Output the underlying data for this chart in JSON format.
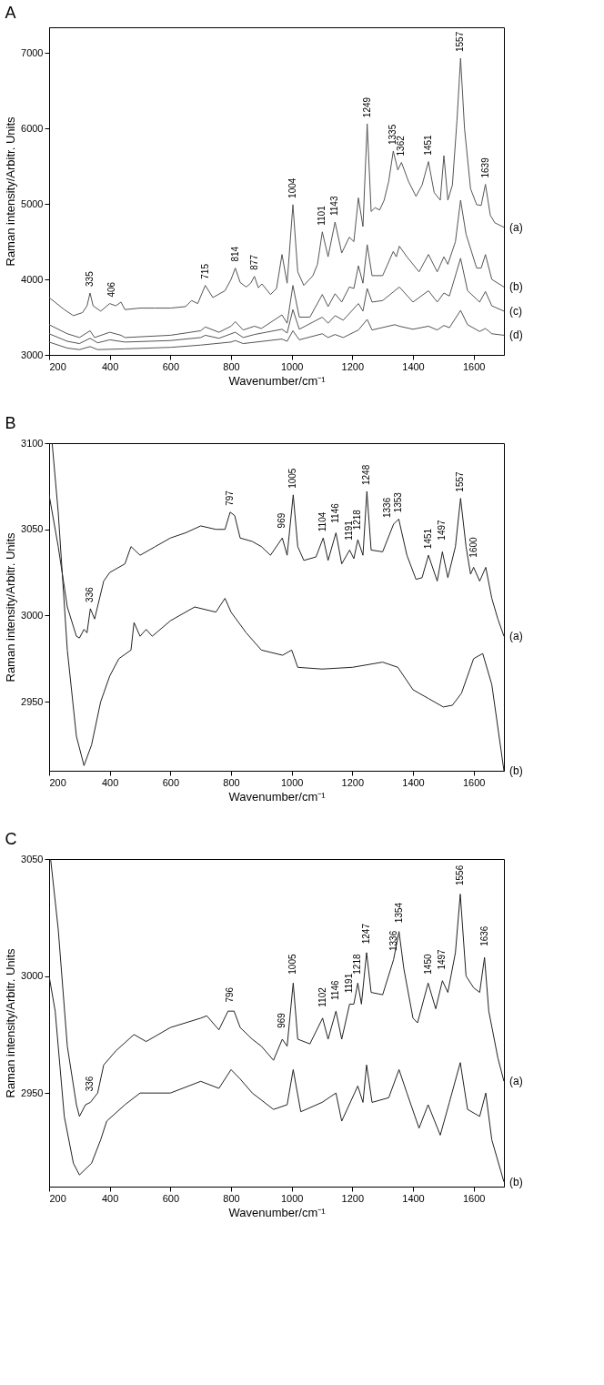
{
  "chart_data": [
    {
      "type": "line",
      "title": "A",
      "xlabel": "Wavenumber/cm⁻¹",
      "ylabel": "Raman intensity/Arbitr. Units",
      "xlim": [
        200,
        1700
      ],
      "xticks": [
        200,
        400,
        600,
        800,
        1000,
        1200,
        1400,
        1600
      ],
      "ylim": [
        3000,
        7340
      ],
      "yticks": [
        3000,
        4000,
        5000,
        6000,
        7000
      ],
      "line_style": "solid",
      "series": [
        {
          "name": "(a)",
          "color": "#555555",
          "x": [
            200,
            250,
            280,
            310,
            325,
            335,
            345,
            370,
            400,
            420,
            437,
            450,
            500,
            550,
            600,
            650,
            670,
            690,
            715,
            740,
            780,
            800,
            814,
            830,
            850,
            865,
            877,
            890,
            902,
            930,
            950,
            968,
            985,
            1004,
            1020,
            1040,
            1070,
            1085,
            1101,
            1120,
            1143,
            1165,
            1190,
            1205,
            1220,
            1235,
            1249,
            1262,
            1275,
            1290,
            1305,
            1320,
            1335,
            1350,
            1362,
            1385,
            1410,
            1430,
            1451,
            1470,
            1490,
            1502,
            1515,
            1530,
            1545,
            1557,
            1570,
            1590,
            1610,
            1625,
            1639,
            1655,
            1670,
            1685,
            1700
          ],
          "values": [
            3760,
            3600,
            3520,
            3560,
            3650,
            3820,
            3650,
            3580,
            3680,
            3650,
            3700,
            3600,
            3620,
            3620,
            3620,
            3640,
            3720,
            3680,
            3920,
            3760,
            3850,
            4000,
            4150,
            3960,
            3900,
            3950,
            4040,
            3890,
            3940,
            3800,
            3880,
            4330,
            3950,
            4990,
            4100,
            3920,
            4050,
            4200,
            4630,
            4300,
            4760,
            4350,
            4560,
            4500,
            5080,
            4700,
            6060,
            4900,
            4950,
            4920,
            5050,
            5300,
            5700,
            5450,
            5550,
            5300,
            5100,
            5250,
            5560,
            5150,
            5050,
            5640,
            5050,
            5250,
            6100,
            6930,
            6000,
            5200,
            4990,
            4980,
            5260,
            4850,
            4750,
            4720,
            4690
          ]
        },
        {
          "name": "(b)",
          "color": "#555555",
          "x": [
            200,
            260,
            300,
            335,
            350,
            400,
            437,
            450,
            600,
            700,
            715,
            760,
            800,
            814,
            840,
            877,
            900,
            968,
            985,
            1004,
            1025,
            1060,
            1101,
            1120,
            1143,
            1165,
            1190,
            1205,
            1220,
            1235,
            1249,
            1265,
            1300,
            1335,
            1345,
            1355,
            1380,
            1420,
            1451,
            1480,
            1502,
            1515,
            1540,
            1557,
            1575,
            1610,
            1625,
            1639,
            1660,
            1700
          ],
          "values": [
            3400,
            3280,
            3230,
            3320,
            3230,
            3300,
            3260,
            3230,
            3260,
            3320,
            3370,
            3300,
            3380,
            3440,
            3330,
            3380,
            3350,
            3530,
            3420,
            3920,
            3500,
            3500,
            3800,
            3640,
            3810,
            3700,
            3900,
            3880,
            4180,
            3950,
            4460,
            4050,
            4050,
            4370,
            4300,
            4440,
            4300,
            4100,
            4330,
            4100,
            4300,
            4200,
            4500,
            5050,
            4600,
            4150,
            4150,
            4330,
            4000,
            3900
          ]
        },
        {
          "name": "(c)",
          "color": "#555555",
          "x": [
            200,
            260,
            300,
            335,
            360,
            400,
            450,
            600,
            700,
            715,
            760,
            814,
            840,
            877,
            968,
            985,
            1004,
            1025,
            1101,
            1120,
            1143,
            1170,
            1220,
            1235,
            1249,
            1265,
            1300,
            1340,
            1355,
            1400,
            1451,
            1480,
            1502,
            1520,
            1557,
            1580,
            1620,
            1639,
            1660,
            1700
          ],
          "values": [
            3280,
            3180,
            3150,
            3220,
            3160,
            3200,
            3170,
            3190,
            3230,
            3260,
            3220,
            3300,
            3230,
            3270,
            3340,
            3290,
            3600,
            3340,
            3500,
            3420,
            3520,
            3460,
            3680,
            3580,
            3880,
            3700,
            3720,
            3850,
            3900,
            3700,
            3850,
            3700,
            3820,
            3780,
            4280,
            3850,
            3700,
            3840,
            3650,
            3580
          ]
        },
        {
          "name": "(d)",
          "color": "#555555",
          "x": [
            200,
            260,
            300,
            335,
            360,
            450,
            600,
            700,
            800,
            814,
            840,
            968,
            985,
            1004,
            1025,
            1101,
            1120,
            1143,
            1170,
            1220,
            1249,
            1265,
            1340,
            1355,
            1400,
            1451,
            1480,
            1502,
            1520,
            1557,
            1580,
            1620,
            1639,
            1660,
            1700
          ],
          "values": [
            3170,
            3090,
            3070,
            3110,
            3070,
            3080,
            3100,
            3130,
            3170,
            3190,
            3150,
            3210,
            3180,
            3320,
            3200,
            3280,
            3230,
            3270,
            3230,
            3330,
            3470,
            3330,
            3400,
            3380,
            3340,
            3380,
            3330,
            3390,
            3360,
            3590,
            3400,
            3310,
            3350,
            3280,
            3260
          ]
        }
      ],
      "annotations": [
        {
          "text": "335",
          "x": 335,
          "y": 3820
        },
        {
          "text": "406",
          "x": 406,
          "y": 3680
        },
        {
          "text": "715",
          "x": 715,
          "y": 3920
        },
        {
          "text": "814",
          "x": 814,
          "y": 4150
        },
        {
          "text": "877",
          "x": 877,
          "y": 4040
        },
        {
          "text": "1004",
          "x": 1004,
          "y": 4990
        },
        {
          "text": "1101",
          "x": 1101,
          "y": 4630
        },
        {
          "text": "1143",
          "x": 1143,
          "y": 4760
        },
        {
          "text": "1249",
          "x": 1249,
          "y": 6060
        },
        {
          "text": "1335",
          "x": 1335,
          "y": 5700
        },
        {
          "text": "1362",
          "x": 1362,
          "y": 5550
        },
        {
          "text": "1451",
          "x": 1451,
          "y": 5560
        },
        {
          "text": "1557",
          "x": 1557,
          "y": 6930
        },
        {
          "text": "1639",
          "x": 1639,
          "y": 5260
        }
      ]
    },
    {
      "type": "line",
      "title": "B",
      "xlabel": "Wavenumber/cm⁻¹",
      "ylabel": "Raman intensity/Arbitr. Units",
      "xlim": [
        200,
        1700
      ],
      "xticks": [
        200,
        400,
        600,
        800,
        1000,
        1200,
        1400,
        1600
      ],
      "ylim": [
        2910,
        3100
      ],
      "yticks": [
        2950,
        3000,
        3050,
        3100
      ],
      "line_style": "solid",
      "series": [
        {
          "name": "(a)",
          "color": "#222222",
          "x": [
            200,
            230,
            260,
            290,
            300,
            315,
            325,
            336,
            350,
            380,
            400,
            450,
            470,
            500,
            550,
            600,
            650,
            700,
            750,
            780,
            797,
            812,
            830,
            870,
            900,
            930,
            969,
            985,
            1005,
            1020,
            1040,
            1080,
            1104,
            1120,
            1146,
            1165,
            1191,
            1205,
            1218,
            1235,
            1248,
            1262,
            1300,
            1336,
            1353,
            1380,
            1410,
            1430,
            1451,
            1480,
            1497,
            1515,
            1540,
            1557,
            1575,
            1590,
            1600,
            1620,
            1640,
            1660,
            1680,
            1700
          ],
          "values": [
            3070,
            3040,
            3005,
            2988,
            2987,
            2992,
            2990,
            3004,
            2998,
            3020,
            3025,
            3030,
            3040,
            3035,
            3040,
            3045,
            3048,
            3052,
            3050,
            3050,
            3060,
            3058,
            3045,
            3043,
            3040,
            3035,
            3045,
            3035,
            3070,
            3040,
            3032,
            3034,
            3045,
            3032,
            3048,
            3030,
            3038,
            3033,
            3044,
            3035,
            3072,
            3038,
            3037,
            3053,
            3056,
            3035,
            3021,
            3022,
            3035,
            3020,
            3037,
            3022,
            3040,
            3068,
            3040,
            3024,
            3028,
            3020,
            3028,
            3010,
            2998,
            2988
          ]
        },
        {
          "name": "(b)",
          "color": "#222222",
          "x": [
            210,
            230,
            260,
            290,
            315,
            340,
            370,
            400,
            430,
            470,
            480,
            500,
            520,
            540,
            600,
            680,
            750,
            780,
            800,
            850,
            900,
            970,
            1000,
            1020,
            1100,
            1200,
            1300,
            1350,
            1400,
            1450,
            1500,
            1530,
            1560,
            1600,
            1630,
            1660,
            1700
          ],
          "values": [
            3100,
            3060,
            2980,
            2930,
            2913,
            2925,
            2950,
            2965,
            2975,
            2980,
            2996,
            2988,
            2992,
            2988,
            2997,
            3005,
            3002,
            3010,
            3002,
            2990,
            2980,
            2977,
            2980,
            2970,
            2969,
            2970,
            2973,
            2970,
            2957,
            2952,
            2947,
            2948,
            2955,
            2975,
            2978,
            2960,
            2910
          ]
        }
      ],
      "annotations": [
        {
          "text": "336",
          "x": 336,
          "y": 3004
        },
        {
          "text": "797",
          "x": 797,
          "y": 3060
        },
        {
          "text": "969",
          "x": 969,
          "y": 3047
        },
        {
          "text": "1005",
          "x": 1005,
          "y": 3070
        },
        {
          "text": "1104",
          "x": 1104,
          "y": 3045
        },
        {
          "text": "1146",
          "x": 1146,
          "y": 3050
        },
        {
          "text": "1191",
          "x": 1191,
          "y": 3040
        },
        {
          "text": "1218",
          "x": 1218,
          "y": 3046
        },
        {
          "text": "1248",
          "x": 1248,
          "y": 3072
        },
        {
          "text": "1336",
          "x": 1336,
          "y": 3053
        },
        {
          "text": "1353",
          "x": 1353,
          "y": 3056
        },
        {
          "text": "1451",
          "x": 1451,
          "y": 3035
        },
        {
          "text": "1497",
          "x": 1497,
          "y": 3040
        },
        {
          "text": "1557",
          "x": 1557,
          "y": 3068
        },
        {
          "text": "1600",
          "x": 1600,
          "y": 3030
        }
      ]
    },
    {
      "type": "line",
      "title": "C",
      "xlabel": "Wavenumber/cm⁻¹",
      "ylabel": "Raman intensity/Arbitr. Units",
      "xlim": [
        200,
        1700
      ],
      "xticks": [
        200,
        400,
        600,
        800,
        1000,
        1200,
        1400,
        1600
      ],
      "ylim": [
        2910,
        3050
      ],
      "yticks": [
        2950,
        3000,
        3050
      ],
      "line_style": "solid",
      "series": [
        {
          "name": "(a)",
          "color": "#222222",
          "x": [
            205,
            230,
            260,
            290,
            300,
            320,
            336,
            360,
            380,
            420,
            480,
            520,
            560,
            600,
            650,
            700,
            720,
            760,
            790,
            810,
            830,
            870,
            900,
            940,
            969,
            985,
            1005,
            1020,
            1060,
            1102,
            1120,
            1146,
            1165,
            1191,
            1205,
            1218,
            1230,
            1247,
            1262,
            1300,
            1336,
            1354,
            1370,
            1400,
            1415,
            1450,
            1475,
            1497,
            1515,
            1540,
            1556,
            1575,
            1600,
            1620,
            1636,
            1650,
            1680,
            1700
          ],
          "values": [
            3050,
            3020,
            2970,
            2945,
            2940,
            2945,
            2946,
            2950,
            2962,
            2968,
            2975,
            2972,
            2975,
            2978,
            2980,
            2982,
            2983,
            2977,
            2985,
            2985,
            2978,
            2973,
            2970,
            2964,
            2973,
            2970,
            2997,
            2973,
            2971,
            2982,
            2973,
            2985,
            2973,
            2988,
            2988,
            2997,
            2988,
            3010,
            2993,
            2992,
            3007,
            3019,
            3003,
            2982,
            2980,
            2997,
            2986,
            2998,
            2993,
            3010,
            3035,
            3000,
            2995,
            2993,
            3008,
            2985,
            2965,
            2955
          ]
        },
        {
          "name": "(b)",
          "color": "#222222",
          "x": [
            200,
            220,
            250,
            280,
            300,
            340,
            370,
            390,
            450,
            500,
            600,
            700,
            760,
            800,
            830,
            870,
            940,
            985,
            1005,
            1030,
            1100,
            1146,
            1165,
            1218,
            1235,
            1247,
            1265,
            1320,
            1354,
            1380,
            1420,
            1450,
            1490,
            1520,
            1556,
            1580,
            1620,
            1640,
            1660,
            1700
          ],
          "values": [
            3000,
            2985,
            2940,
            2920,
            2915,
            2920,
            2930,
            2938,
            2945,
            2950,
            2950,
            2955,
            2952,
            2960,
            2956,
            2950,
            2943,
            2945,
            2960,
            2942,
            2946,
            2950,
            2938,
            2953,
            2946,
            2962,
            2946,
            2948,
            2960,
            2950,
            2935,
            2945,
            2932,
            2946,
            2963,
            2943,
            2940,
            2950,
            2930,
            2912
          ]
        }
      ],
      "annotations": [
        {
          "text": "336",
          "x": 336,
          "y": 2948
        },
        {
          "text": "796",
          "x": 796,
          "y": 2986
        },
        {
          "text": "969",
          "x": 969,
          "y": 2975
        },
        {
          "text": "1005",
          "x": 1005,
          "y": 2998
        },
        {
          "text": "1102",
          "x": 1102,
          "y": 2984
        },
        {
          "text": "1146",
          "x": 1146,
          "y": 2987
        },
        {
          "text": "1191",
          "x": 1191,
          "y": 2990
        },
        {
          "text": "1218",
          "x": 1218,
          "y": 2998
        },
        {
          "text": "1247",
          "x": 1247,
          "y": 3011
        },
        {
          "text": "1336",
          "x": 1336,
          "y": 3008
        },
        {
          "text": "1354",
          "x": 1354,
          "y": 3020
        },
        {
          "text": "1450",
          "x": 1450,
          "y": 2998
        },
        {
          "text": "1497",
          "x": 1497,
          "y": 3000
        },
        {
          "text": "1556",
          "x": 1556,
          "y": 3036
        },
        {
          "text": "1636",
          "x": 1636,
          "y": 3010
        }
      ]
    }
  ]
}
